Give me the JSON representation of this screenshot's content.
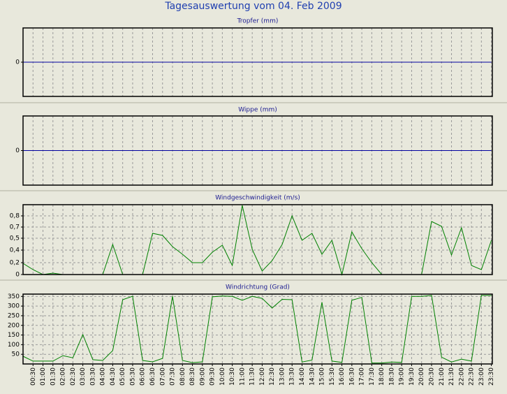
{
  "title": "Tagesauswertung vom 04. Feb 2009",
  "chart_data": [
    {
      "type": "line",
      "title": "Tropfer (mm)",
      "ylim": [
        -1,
        1
      ],
      "yticks": [
        0
      ],
      "grid": false,
      "xgrid": true,
      "series": [
        {
          "color": "#0000a0",
          "values": [
            0,
            0,
            0,
            0,
            0,
            0,
            0,
            0,
            0,
            0,
            0,
            0,
            0,
            0,
            0,
            0,
            0,
            0,
            0,
            0,
            0,
            0,
            0,
            0,
            0,
            0,
            0,
            0,
            0,
            0,
            0,
            0,
            0,
            0,
            0,
            0,
            0,
            0,
            0,
            0,
            0,
            0,
            0,
            0,
            0,
            0,
            0,
            0
          ]
        }
      ]
    },
    {
      "type": "line",
      "title": "Wippe (mm)",
      "ylim": [
        -1,
        1
      ],
      "yticks": [
        0
      ],
      "grid": false,
      "xgrid": true,
      "series": [
        {
          "color": "#0000a0",
          "values": [
            0,
            0,
            0,
            0,
            0,
            0,
            0,
            0,
            0,
            0,
            0,
            0,
            0,
            0,
            0,
            0,
            0,
            0,
            0,
            0,
            0,
            0,
            0,
            0,
            0,
            0,
            0,
            0,
            0,
            0,
            0,
            0,
            0,
            0,
            0,
            0,
            0,
            0,
            0,
            0,
            0,
            0,
            0,
            0,
            0,
            0,
            0,
            0
          ]
        }
      ]
    },
    {
      "type": "line",
      "title": "Windgeschwindigkeit (m/s)",
      "ylim": [
        0,
        1
      ],
      "yticks": [
        0,
        {
          "value": 0.17,
          "label": "0,2"
        },
        {
          "value": 0.35,
          "label": "0,4"
        },
        {
          "value": 0.52,
          "label": "0,5"
        },
        {
          "value": 0.68,
          "label": "0,7"
        },
        {
          "value": 0.84,
          "label": "0,8"
        }
      ],
      "grid": true,
      "xgrid": true,
      "series": [
        {
          "color": "#008000",
          "values": [
            0.16,
            0.07,
            0,
            0.02,
            0,
            0,
            0,
            0,
            0,
            0.43,
            0,
            0,
            0,
            0.59,
            0.56,
            0.4,
            0.29,
            0.17,
            0.17,
            0.32,
            0.42,
            0.13,
            0.99,
            0.36,
            0.05,
            0.2,
            0.43,
            0.84,
            0.49,
            0.59,
            0.29,
            0.49,
            0,
            0.61,
            0.37,
            0.17,
            0,
            0,
            0,
            0,
            0,
            0.76,
            0.69,
            0.28,
            0.67,
            0.13,
            0.07,
            0.49
          ]
        }
      ]
    },
    {
      "type": "line",
      "title": "Windrichtung (Grad)",
      "ylim": [
        0,
        362
      ],
      "yticks": [
        50,
        100,
        150,
        200,
        250,
        300,
        350
      ],
      "grid": true,
      "xgrid": true,
      "categories": [
        null,
        "00:30",
        "01:00",
        "01:30",
        "02:00",
        "02:30",
        "03:00",
        "03:30",
        "04:00",
        "04:30",
        "05:00",
        "05:30",
        "06:00",
        "06:30",
        "07:00",
        "07:30",
        "08:00",
        "08:30",
        "09:00",
        "09:30",
        "10:00",
        "10:30",
        "11:00",
        "11:30",
        "12:00",
        "12:30",
        "13:00",
        "13:30",
        "14:00",
        "14:30",
        "15:00",
        "15:30",
        "16:00",
        "16:30",
        "17:00",
        "17:30",
        "18:00",
        "18:30",
        "19:00",
        "19:30",
        "20:00",
        "20:30",
        "21:00",
        "21:30",
        "22:00",
        "22:30",
        "23:00",
        "23:30"
      ],
      "series": [
        {
          "color": "#008000",
          "values": [
            40,
            15,
            15,
            15,
            43,
            32,
            152,
            22,
            18,
            69,
            333,
            351,
            18,
            11,
            29,
            351,
            18,
            7,
            11,
            348,
            352,
            350,
            330,
            350,
            340,
            290,
            335,
            333,
            10,
            20,
            320,
            15,
            8,
            330,
            345,
            5,
            5,
            10,
            8,
            350,
            350,
            355,
            35,
            10,
            25,
            15,
            355,
            355
          ]
        }
      ]
    }
  ]
}
